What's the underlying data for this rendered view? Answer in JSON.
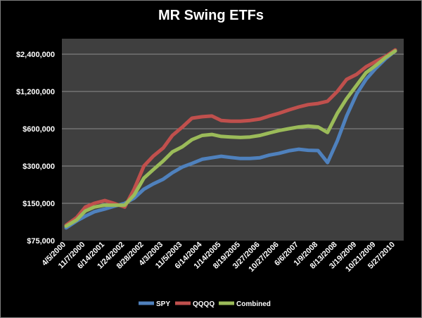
{
  "chart_data": {
    "type": "line",
    "title": "MR Swing ETFs",
    "xlabel": "",
    "ylabel": "",
    "y_scale": "log",
    "ylim": [
      75000,
      3200000
    ],
    "grid": true,
    "legend_position": "bottom",
    "y_ticks": [
      "$75,000",
      "$150,000",
      "$300,000",
      "$600,000",
      "$1,200,000",
      "$2,400,000"
    ],
    "y_tick_values": [
      75000,
      150000,
      300000,
      600000,
      1200000,
      2400000
    ],
    "x_ticks": [
      "4/5/2000",
      "11/7/2000",
      "6/14/2001",
      "1/24/2002",
      "8/28/2002",
      "4/3/2003",
      "11/5/2003",
      "6/14/2004",
      "1/14/2005",
      "8/19/2005",
      "3/27/2006",
      "10/27/2006",
      "6/6/2007",
      "1/9/2008",
      "8/13/2008",
      "3/19/2009",
      "10/21/2009",
      "5/27/2010"
    ],
    "x": [
      "4/5/2000",
      "8/1/2000",
      "11/7/2000",
      "2/15/2001",
      "6/14/2001",
      "9/25/2001",
      "1/24/2002",
      "5/10/2002",
      "8/28/2002",
      "12/10/2002",
      "4/3/2003",
      "7/15/2003",
      "11/5/2003",
      "2/20/2004",
      "6/14/2004",
      "10/1/2004",
      "1/14/2005",
      "5/2/2005",
      "8/19/2005",
      "12/5/2005",
      "3/27/2006",
      "7/10/2006",
      "10/27/2006",
      "2/12/2007",
      "6/6/2007",
      "9/20/2007",
      "1/9/2008",
      "4/25/2008",
      "8/13/2008",
      "11/25/2008",
      "3/19/2009",
      "7/2/2009",
      "10/21/2009",
      "2/5/2010",
      "5/27/2010"
    ],
    "series": [
      {
        "name": "SPY",
        "color": "#4f81bd",
        "values": [
          95000,
          108000,
          118000,
          128000,
          135000,
          142000,
          150000,
          165000,
          195000,
          215000,
          235000,
          265000,
          295000,
          315000,
          340000,
          350000,
          360000,
          352000,
          345000,
          345000,
          350000,
          368000,
          380000,
          398000,
          410000,
          402000,
          400000,
          320000,
          480000,
          760000,
          1150000,
          1500000,
          1850000,
          2200000,
          2550000
        ]
      },
      {
        "name": "QQQQ",
        "color": "#c0504d",
        "values": [
          100000,
          115000,
          140000,
          150000,
          158000,
          150000,
          140000,
          195000,
          300000,
          360000,
          420000,
          530000,
          620000,
          730000,
          750000,
          760000,
          700000,
          690000,
          690000,
          700000,
          720000,
          760000,
          800000,
          850000,
          900000,
          940000,
          960000,
          1000000,
          1200000,
          1500000,
          1650000,
          1900000,
          2100000,
          2300000,
          2600000
        ]
      },
      {
        "name": "Combined",
        "color": "#9bbb59",
        "values": [
          98000,
          110000,
          130000,
          140000,
          145000,
          145000,
          145000,
          175000,
          240000,
          280000,
          330000,
          390000,
          430000,
          490000,
          530000,
          540000,
          520000,
          515000,
          510000,
          515000,
          530000,
          555000,
          580000,
          600000,
          620000,
          630000,
          620000,
          560000,
          800000,
          1050000,
          1350000,
          1700000,
          1950000,
          2250000,
          2550000
        ]
      }
    ]
  }
}
